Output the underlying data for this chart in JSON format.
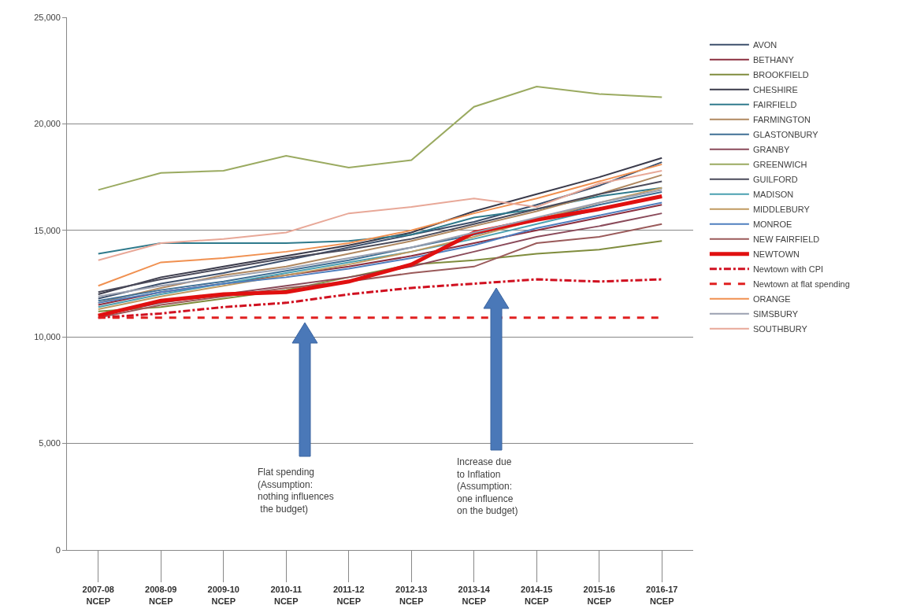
{
  "chart_data": {
    "type": "line",
    "categories": [
      "2007-08\nNCEP",
      "2008-09\nNCEP",
      "2009-10\nNCEP",
      "2010-11\nNCEP",
      "2011-12\nNCEP",
      "2012-13\nNCEP",
      "2013-14\nNCEP",
      "2014-15\nNCEP",
      "2015-16\nNCEP",
      "2016-17\nNCEP"
    ],
    "series": [
      {
        "name": "AVON",
        "color": "#3d4f6b",
        "values": [
          11800,
          12500,
          13000,
          13600,
          14200,
          14800,
          15400,
          16200,
          17100,
          18200
        ]
      },
      {
        "name": "BETHANY",
        "color": "#8b2e3e",
        "values": [
          11500,
          12100,
          12500,
          12900,
          13300,
          13800,
          14400,
          15000,
          15600,
          16200
        ]
      },
      {
        "name": "BROOKFIELD",
        "color": "#7f8c3d",
        "values": [
          11200,
          11400,
          11800,
          12200,
          12800,
          13400,
          13600,
          13900,
          14100,
          14500
        ]
      },
      {
        "name": "CHESHIRE",
        "color": "#3a3a4a",
        "values": [
          12000,
          12800,
          13300,
          13800,
          14300,
          14900,
          15900,
          16700,
          17500,
          18400
        ]
      },
      {
        "name": "FAIRFIELD",
        "color": "#2f7a8c",
        "values": [
          13900,
          14400,
          14400,
          14400,
          14500,
          14800,
          15600,
          16000,
          16600,
          17000
        ]
      },
      {
        "name": "FARMINGTON",
        "color": "#b08860",
        "values": [
          11600,
          12300,
          12900,
          13300,
          13900,
          14500,
          15200,
          15900,
          16700,
          17600
        ]
      },
      {
        "name": "GLASTONBURY",
        "color": "#3f6f95",
        "values": [
          11700,
          12200,
          12600,
          13100,
          13600,
          14200,
          14800,
          15500,
          16200,
          16800
        ]
      },
      {
        "name": "GRANBY",
        "color": "#8a4a5a",
        "values": [
          11000,
          11600,
          12000,
          12400,
          12800,
          13300,
          14000,
          14700,
          15200,
          15800
        ]
      },
      {
        "name": "GREENWICH",
        "color": "#9aaa60",
        "values": [
          16900,
          17700,
          17800,
          18500,
          17950,
          18300,
          20800,
          21750,
          21400,
          21250
        ]
      },
      {
        "name": "GUILFORD",
        "color": "#4a4a5a",
        "values": [
          12100,
          12700,
          13200,
          13700,
          14100,
          14600,
          15300,
          16000,
          16700,
          17300
        ]
      },
      {
        "name": "MADISON",
        "color": "#4aa0b0",
        "values": [
          11400,
          12000,
          12500,
          13000,
          13500,
          14000,
          14600,
          15300,
          16000,
          16600
        ]
      },
      {
        "name": "MIDDLEBURY",
        "color": "#c09a60",
        "values": [
          11300,
          11900,
          12400,
          12900,
          13400,
          14000,
          14700,
          15500,
          16300,
          17000
        ]
      },
      {
        "name": "MONROE",
        "color": "#4f7fbf",
        "values": [
          11600,
          12100,
          12500,
          12800,
          13200,
          13700,
          14300,
          15100,
          15700,
          16300
        ]
      },
      {
        "name": "NEW FAIRFIELD",
        "color": "#9a5a5a",
        "values": [
          10900,
          11500,
          11900,
          12300,
          12600,
          13000,
          13300,
          14400,
          14700,
          15300
        ]
      },
      {
        "name": "NEWTOWN",
        "color": "#e01010",
        "values": [
          11000,
          11700,
          12000,
          12100,
          12600,
          13400,
          14900,
          15500,
          16000,
          16600
        ]
      },
      {
        "name": "Newtown with CPI",
        "color": "#d01020",
        "line_style": "dashdot",
        "values": [
          10900,
          11100,
          11400,
          11600,
          12000,
          12300,
          12500,
          12700,
          12600,
          12700
        ]
      },
      {
        "name": "Newtown at flat spending",
        "color": "#e02020",
        "line_style": "dashed",
        "values": [
          10900,
          10900,
          10900,
          10900,
          10900,
          10900,
          10900,
          10900,
          10900,
          10900
        ]
      },
      {
        "name": "ORANGE",
        "color": "#f09050",
        "values": [
          12400,
          13500,
          13700,
          14000,
          14400,
          15000,
          15800,
          16500,
          17300,
          18100
        ]
      },
      {
        "name": "SIMSBURY",
        "color": "#9aa0b0",
        "values": [
          11900,
          12400,
          12800,
          13200,
          13700,
          14200,
          14900,
          15600,
          16300,
          16900
        ]
      },
      {
        "name": "SOUTHBURY",
        "color": "#e8a898",
        "values": [
          13600,
          14400,
          14600,
          14900,
          15800,
          16100,
          16500,
          16100,
          17200,
          17800
        ]
      }
    ],
    "ylim": [
      0,
      25000
    ],
    "yticks": [
      {
        "value": 0,
        "label": "0"
      },
      {
        "value": 5000,
        "label": "5,000"
      },
      {
        "value": 10000,
        "label": "10,000"
      },
      {
        "value": 15000,
        "label": "15,000"
      },
      {
        "value": 20000,
        "label": "20,000"
      },
      {
        "value": 25000,
        "label": "25,000"
      }
    ],
    "grid": "y",
    "legend": "right",
    "annotations": [
      "Flat spending\n(Assumption:\nnothing influences\n the budget)",
      "Increase due\nto Inflation\n(Assumption:\none influence\non the budget)"
    ]
  }
}
